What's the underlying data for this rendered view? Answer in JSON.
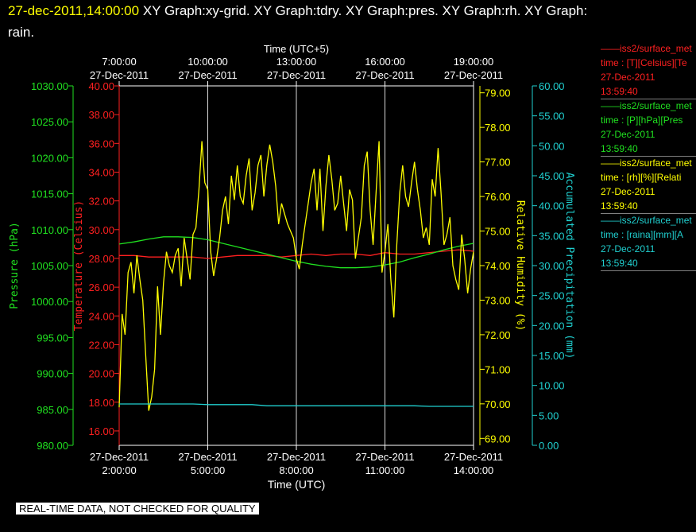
{
  "header": {
    "date": "27-dec-2011,14:00:00",
    "titles": "XY Graph:xy-grid.  XY Graph:tdry.  XY Graph:pres.  XY Graph:rh.  XY Graph:",
    "titles_cont": "rain."
  },
  "legend": [
    {
      "line1": "——iss2/surface_met",
      "line2": "time : [T][Celsius][Te",
      "line3": "27-Dec-2011",
      "line4": "13:59:40",
      "color": "#ff2020"
    },
    {
      "line1": "——iss2/surface_met",
      "line2": "time : [P][hPa][Pres",
      "line3": "27-Dec-2011",
      "line4": "13:59:40",
      "color": "#20e020"
    },
    {
      "line1": "——iss2/surface_met",
      "line2": "time : [rh][%][Relati",
      "line3": "27-Dec-2011",
      "line4": "13:59:40",
      "color": "#ffff00"
    },
    {
      "line1": "——iss2/surface_met",
      "line2": "time : [raina][mm][A",
      "line3": "27-Dec-2011",
      "line4": "13:59:40",
      "color": "#20d0d0"
    }
  ],
  "notice": "REAL-TIME DATA, NOT CHECKED FOR QUALITY",
  "chart_data": {
    "type": "line",
    "grid": true,
    "x_bottom": {
      "label": "Time (UTC)",
      "range_hours": [
        2,
        14
      ],
      "ticks": [
        {
          "h": 2,
          "date": "27-Dec-2011",
          "time": "2:00:00"
        },
        {
          "h": 5,
          "date": "27-Dec-2011",
          "time": "5:00:00"
        },
        {
          "h": 8,
          "date": "27-Dec-2011",
          "time": "8:00:00"
        },
        {
          "h": 11,
          "date": "27-Dec-2011",
          "time": "11:00:00"
        },
        {
          "h": 14,
          "date": "27-Dec-2011",
          "time": "14:00:00"
        }
      ]
    },
    "x_top": {
      "label": "Time (UTC+5)",
      "ticks": [
        {
          "h": 2,
          "date": "27-Dec-2011",
          "time": "7:00:00"
        },
        {
          "h": 5,
          "date": "27-Dec-2011",
          "time": "10:00:00"
        },
        {
          "h": 8,
          "date": "27-Dec-2011",
          "time": "13:00:00"
        },
        {
          "h": 11,
          "date": "27-Dec-2011",
          "time": "16:00:00"
        },
        {
          "h": 14,
          "date": "27-Dec-2011",
          "time": "19:00:00"
        }
      ]
    },
    "axes": {
      "pressure": {
        "label": "Pressure (hPa)",
        "range": [
          980,
          1030
        ],
        "ticks": [
          "980.00",
          "985.00",
          "990.00",
          "995.00",
          "1000.00",
          "1005.00",
          "1010.00",
          "1015.00",
          "1020.00",
          "1025.00",
          "1030.00"
        ],
        "color": "#20e020"
      },
      "temperature": {
        "label": "Temperature (Celsius)",
        "range": [
          15,
          40
        ],
        "ticks": [
          "16.00",
          "18.00",
          "20.00",
          "22.00",
          "24.00",
          "26.00",
          "28.00",
          "30.00",
          "32.00",
          "34.00",
          "36.00",
          "38.00",
          "40.00"
        ],
        "color": "#ff2020"
      },
      "humidity": {
        "label": "Relative Humidity (%)",
        "range": [
          68.8,
          79.2
        ],
        "ticks": [
          "69.00",
          "70.00",
          "71.00",
          "72.00",
          "73.00",
          "74.00",
          "75.00",
          "76.00",
          "77.00",
          "78.00",
          "79.00"
        ],
        "color": "#ffff00"
      },
      "precip": {
        "label": "Accumulated Precipitation (mm)",
        "range": [
          0,
          60
        ],
        "ticks": [
          "0.00",
          "5.00",
          "10.00",
          "15.00",
          "20.00",
          "25.00",
          "30.00",
          "35.00",
          "40.00",
          "45.00",
          "50.00",
          "55.00",
          "60.00"
        ],
        "color": "#20d0d0"
      }
    },
    "series": [
      {
        "axis": "temperature",
        "color": "#ff2020",
        "x": [
          2.0,
          2.5,
          3.0,
          3.5,
          4.0,
          4.5,
          5.0,
          5.5,
          6.0,
          6.5,
          7.0,
          7.5,
          8.0,
          8.5,
          9.0,
          9.5,
          10.0,
          10.5,
          11.0,
          11.5,
          12.0,
          12.5,
          13.0,
          13.5,
          14.0
        ],
        "y": [
          28.2,
          28.2,
          28.1,
          28.1,
          28.1,
          28.1,
          28.0,
          28.1,
          28.2,
          28.2,
          28.2,
          28.1,
          28.2,
          28.3,
          28.2,
          28.3,
          28.3,
          28.2,
          28.4,
          28.3,
          28.3,
          28.4,
          28.5,
          28.6,
          28.5
        ]
      },
      {
        "axis": "pressure",
        "color": "#20e020",
        "x": [
          2.0,
          2.5,
          3.0,
          3.5,
          4.0,
          4.5,
          5.0,
          5.5,
          6.0,
          6.5,
          7.0,
          7.5,
          8.0,
          8.5,
          9.0,
          9.5,
          10.0,
          10.5,
          11.0,
          11.5,
          12.0,
          12.5,
          13.0,
          13.5,
          14.0
        ],
        "y": [
          1008.0,
          1008.3,
          1008.7,
          1009.0,
          1009.0,
          1008.9,
          1008.6,
          1008.1,
          1007.6,
          1007.1,
          1006.6,
          1006.1,
          1005.6,
          1005.2,
          1004.9,
          1004.7,
          1004.7,
          1004.8,
          1005.1,
          1005.5,
          1006.1,
          1006.6,
          1007.2,
          1007.7,
          1008.1
        ]
      },
      {
        "axis": "humidity",
        "color": "#ffff00",
        "x": [
          2.0,
          2.1,
          2.2,
          2.3,
          2.4,
          2.5,
          2.6,
          2.7,
          2.8,
          2.9,
          3.0,
          3.1,
          3.2,
          3.3,
          3.4,
          3.5,
          3.6,
          3.7,
          3.8,
          3.9,
          4.0,
          4.1,
          4.2,
          4.3,
          4.4,
          4.5,
          4.6,
          4.7,
          4.8,
          4.9,
          5.0,
          5.1,
          5.2,
          5.3,
          5.4,
          5.5,
          5.6,
          5.7,
          5.8,
          5.9,
          6.0,
          6.1,
          6.2,
          6.3,
          6.4,
          6.5,
          6.6,
          6.7,
          6.8,
          6.9,
          7.0,
          7.1,
          7.2,
          7.3,
          7.4,
          7.5,
          7.6,
          7.7,
          7.8,
          7.9,
          8.0,
          8.1,
          8.2,
          8.3,
          8.4,
          8.5,
          8.6,
          8.7,
          8.8,
          8.9,
          9.0,
          9.1,
          9.2,
          9.3,
          9.4,
          9.5,
          9.6,
          9.7,
          9.8,
          9.9,
          10.0,
          10.1,
          10.2,
          10.3,
          10.4,
          10.5,
          10.6,
          10.7,
          10.8,
          10.9,
          11.0,
          11.1,
          11.2,
          11.3,
          11.4,
          11.5,
          11.6,
          11.7,
          11.8,
          11.9,
          12.0,
          12.1,
          12.2,
          12.3,
          12.4,
          12.5,
          12.6,
          12.7,
          12.8,
          12.9,
          13.0,
          13.1,
          13.2,
          13.3,
          13.4,
          13.5,
          13.6,
          13.7,
          13.8,
          13.9,
          14.0
        ],
        "y": [
          69.9,
          72.6,
          72.0,
          73.8,
          74.1,
          73.2,
          74.3,
          73.6,
          73.0,
          71.4,
          69.8,
          70.2,
          71.0,
          73.4,
          72.0,
          73.5,
          74.4,
          74.0,
          73.8,
          74.3,
          74.5,
          73.4,
          74.8,
          74.2,
          73.6,
          74.9,
          75.1,
          76.2,
          77.6,
          76.4,
          76.2,
          74.4,
          73.7,
          74.2,
          74.8,
          75.6,
          76.0,
          75.2,
          76.6,
          75.9,
          76.9,
          76.0,
          75.8,
          76.6,
          77.1,
          75.6,
          76.1,
          76.9,
          77.2,
          76.0,
          76.9,
          77.5,
          77.0,
          76.3,
          75.2,
          75.8,
          75.5,
          75.2,
          75.0,
          74.8,
          74.2,
          73.9,
          74.6,
          75.2,
          75.8,
          76.4,
          76.8,
          75.6,
          76.8,
          75.0,
          76.3,
          77.2,
          76.5,
          75.6,
          75.8,
          76.6,
          75.8,
          75.0,
          76.2,
          75.9,
          74.2,
          74.8,
          75.4,
          76.9,
          77.3,
          75.6,
          74.6,
          76.1,
          77.6,
          73.8,
          74.4,
          75.2,
          73.6,
          72.5,
          74.6,
          76.1,
          76.9,
          76.0,
          75.7,
          76.4,
          77.0,
          76.2,
          75.6,
          74.8,
          75.1,
          74.6,
          76.5,
          76.0,
          77.4,
          76.1,
          74.6,
          74.9,
          75.4,
          74.0,
          73.6,
          73.3,
          74.9,
          74.2,
          73.2,
          73.9,
          74.4
        ]
      },
      {
        "axis": "precip",
        "color": "#20d0d0",
        "x": [
          2.0,
          4.5,
          5.0,
          6.5,
          7.0,
          9.0,
          10.0,
          11.0,
          12.0,
          12.5,
          13.0,
          14.0
        ],
        "y": [
          6.9,
          6.9,
          6.8,
          6.8,
          6.6,
          6.6,
          6.6,
          6.6,
          6.6,
          6.5,
          6.5,
          6.5
        ]
      }
    ]
  }
}
